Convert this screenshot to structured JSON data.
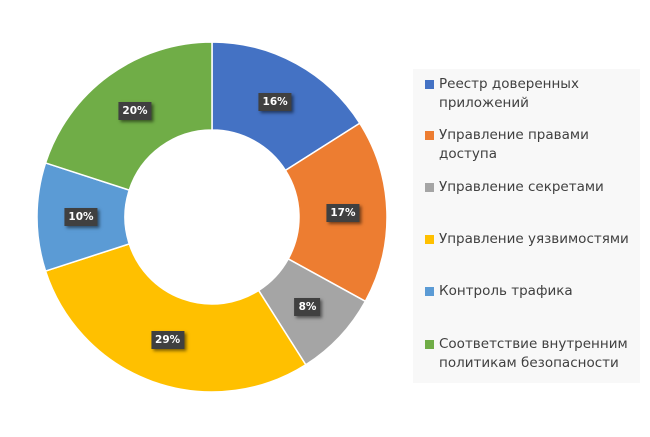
{
  "chart_data": {
    "type": "pie",
    "variant": "donut",
    "categories": [
      "Реестр доверенных приложений",
      "Управление правами доступа",
      "Управление секретами",
      "Управление уязвимостями",
      "Контроль трафика",
      "Соответствие внутренним политикам безопасности"
    ],
    "values": [
      16,
      17,
      8,
      29,
      10,
      20
    ],
    "data_labels": [
      "16%",
      "17%",
      "8%",
      "29%",
      "10%",
      "20%"
    ],
    "colors": [
      "#4472c4",
      "#ed7d31",
      "#a5a5a5",
      "#ffc000",
      "#5b9bd5",
      "#70ad47"
    ],
    "legend_position": "right"
  }
}
